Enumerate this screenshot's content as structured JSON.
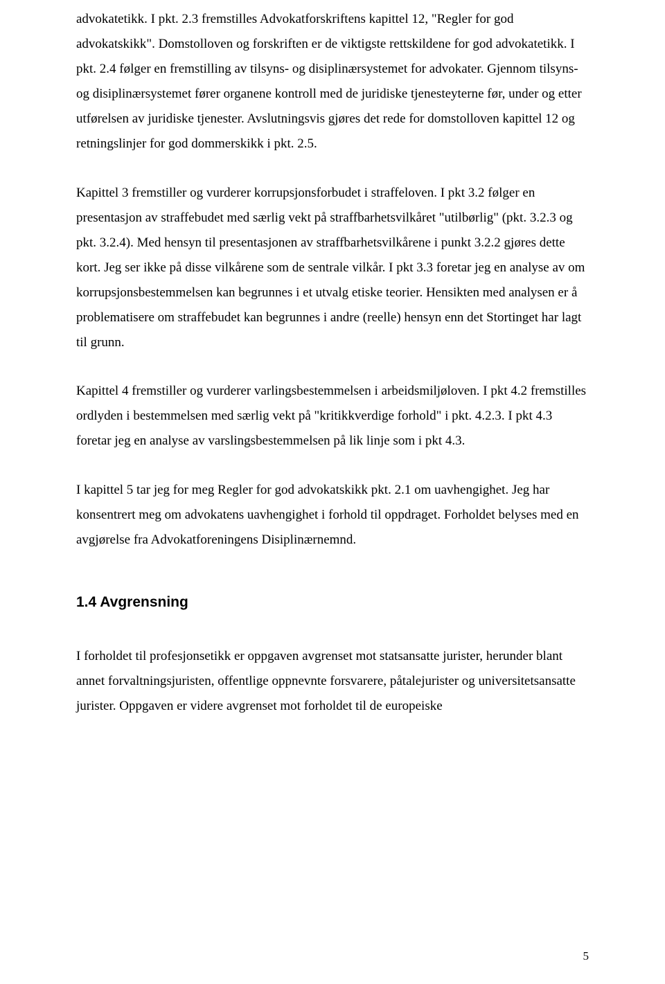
{
  "paragraphs": {
    "p1": "advokatetikk. I pkt. 2.3 fremstilles Advokatforskriftens kapittel 12, \"Regler for god advokatskikk\". Domstolloven og forskriften er de viktigste rettskildene for god advokatetikk. I pkt. 2.4 følger en fremstilling av tilsyns- og disiplinærsystemet for advokater. Gjennom tilsyns- og disiplinærsystemet fører organene kontroll med de juridiske tjenesteyterne før, under og etter utførelsen av juridiske tjenester. Avslutningsvis gjøres det rede for domstolloven kapittel 12 og retningslinjer for god dommerskikk i pkt. 2.5.",
    "p2": "Kapittel 3 fremstiller og vurderer korrupsjonsforbudet i straffeloven. I pkt 3.2 følger en presentasjon av straffebudet med særlig vekt på straffbarhetsvilkåret \"utilbørlig\" (pkt. 3.2.3 og pkt. 3.2.4). Med hensyn til presentasjonen av straffbarhetsvilkårene i punkt 3.2.2 gjøres dette kort. Jeg ser ikke på disse vilkårene som de sentrale vilkår. I pkt 3.3 foretar jeg en analyse av om korrupsjonsbestemmelsen kan begrunnes i et utvalg etiske teorier. Hensikten med analysen er å problematisere om straffebudet kan begrunnes i andre (reelle) hensyn enn det Stortinget har lagt til grunn.",
    "p3": "Kapittel 4 fremstiller og vurderer varlingsbestemmelsen i arbeidsmiljøloven. I pkt 4.2 fremstilles ordlyden i bestemmelsen med særlig vekt på \"kritikkverdige forhold\" i pkt. 4.2.3. I pkt 4.3 foretar jeg en analyse av varslingsbestemmelsen på lik linje som i pkt 4.3.",
    "p4": "I kapittel 5 tar jeg for meg Regler for god advokatskikk pkt. 2.1 om uavhengighet. Jeg har konsentrert meg om advokatens uavhengighet i forhold til oppdraget. Forholdet belyses med en avgjørelse fra Advokatforeningens Disiplinærnemnd.",
    "p5": "I forholdet til profesjonsetikk er oppgaven avgrenset mot statsansatte jurister, herunder blant annet forvaltningsjuristen, offentlige oppnevnte forsvarere, påtalejurister og universitetsansatte jurister. Oppgaven er videre avgrenset mot forholdet til de europeiske"
  },
  "heading": "1.4 Avgrensning",
  "pageNumber": "5"
}
